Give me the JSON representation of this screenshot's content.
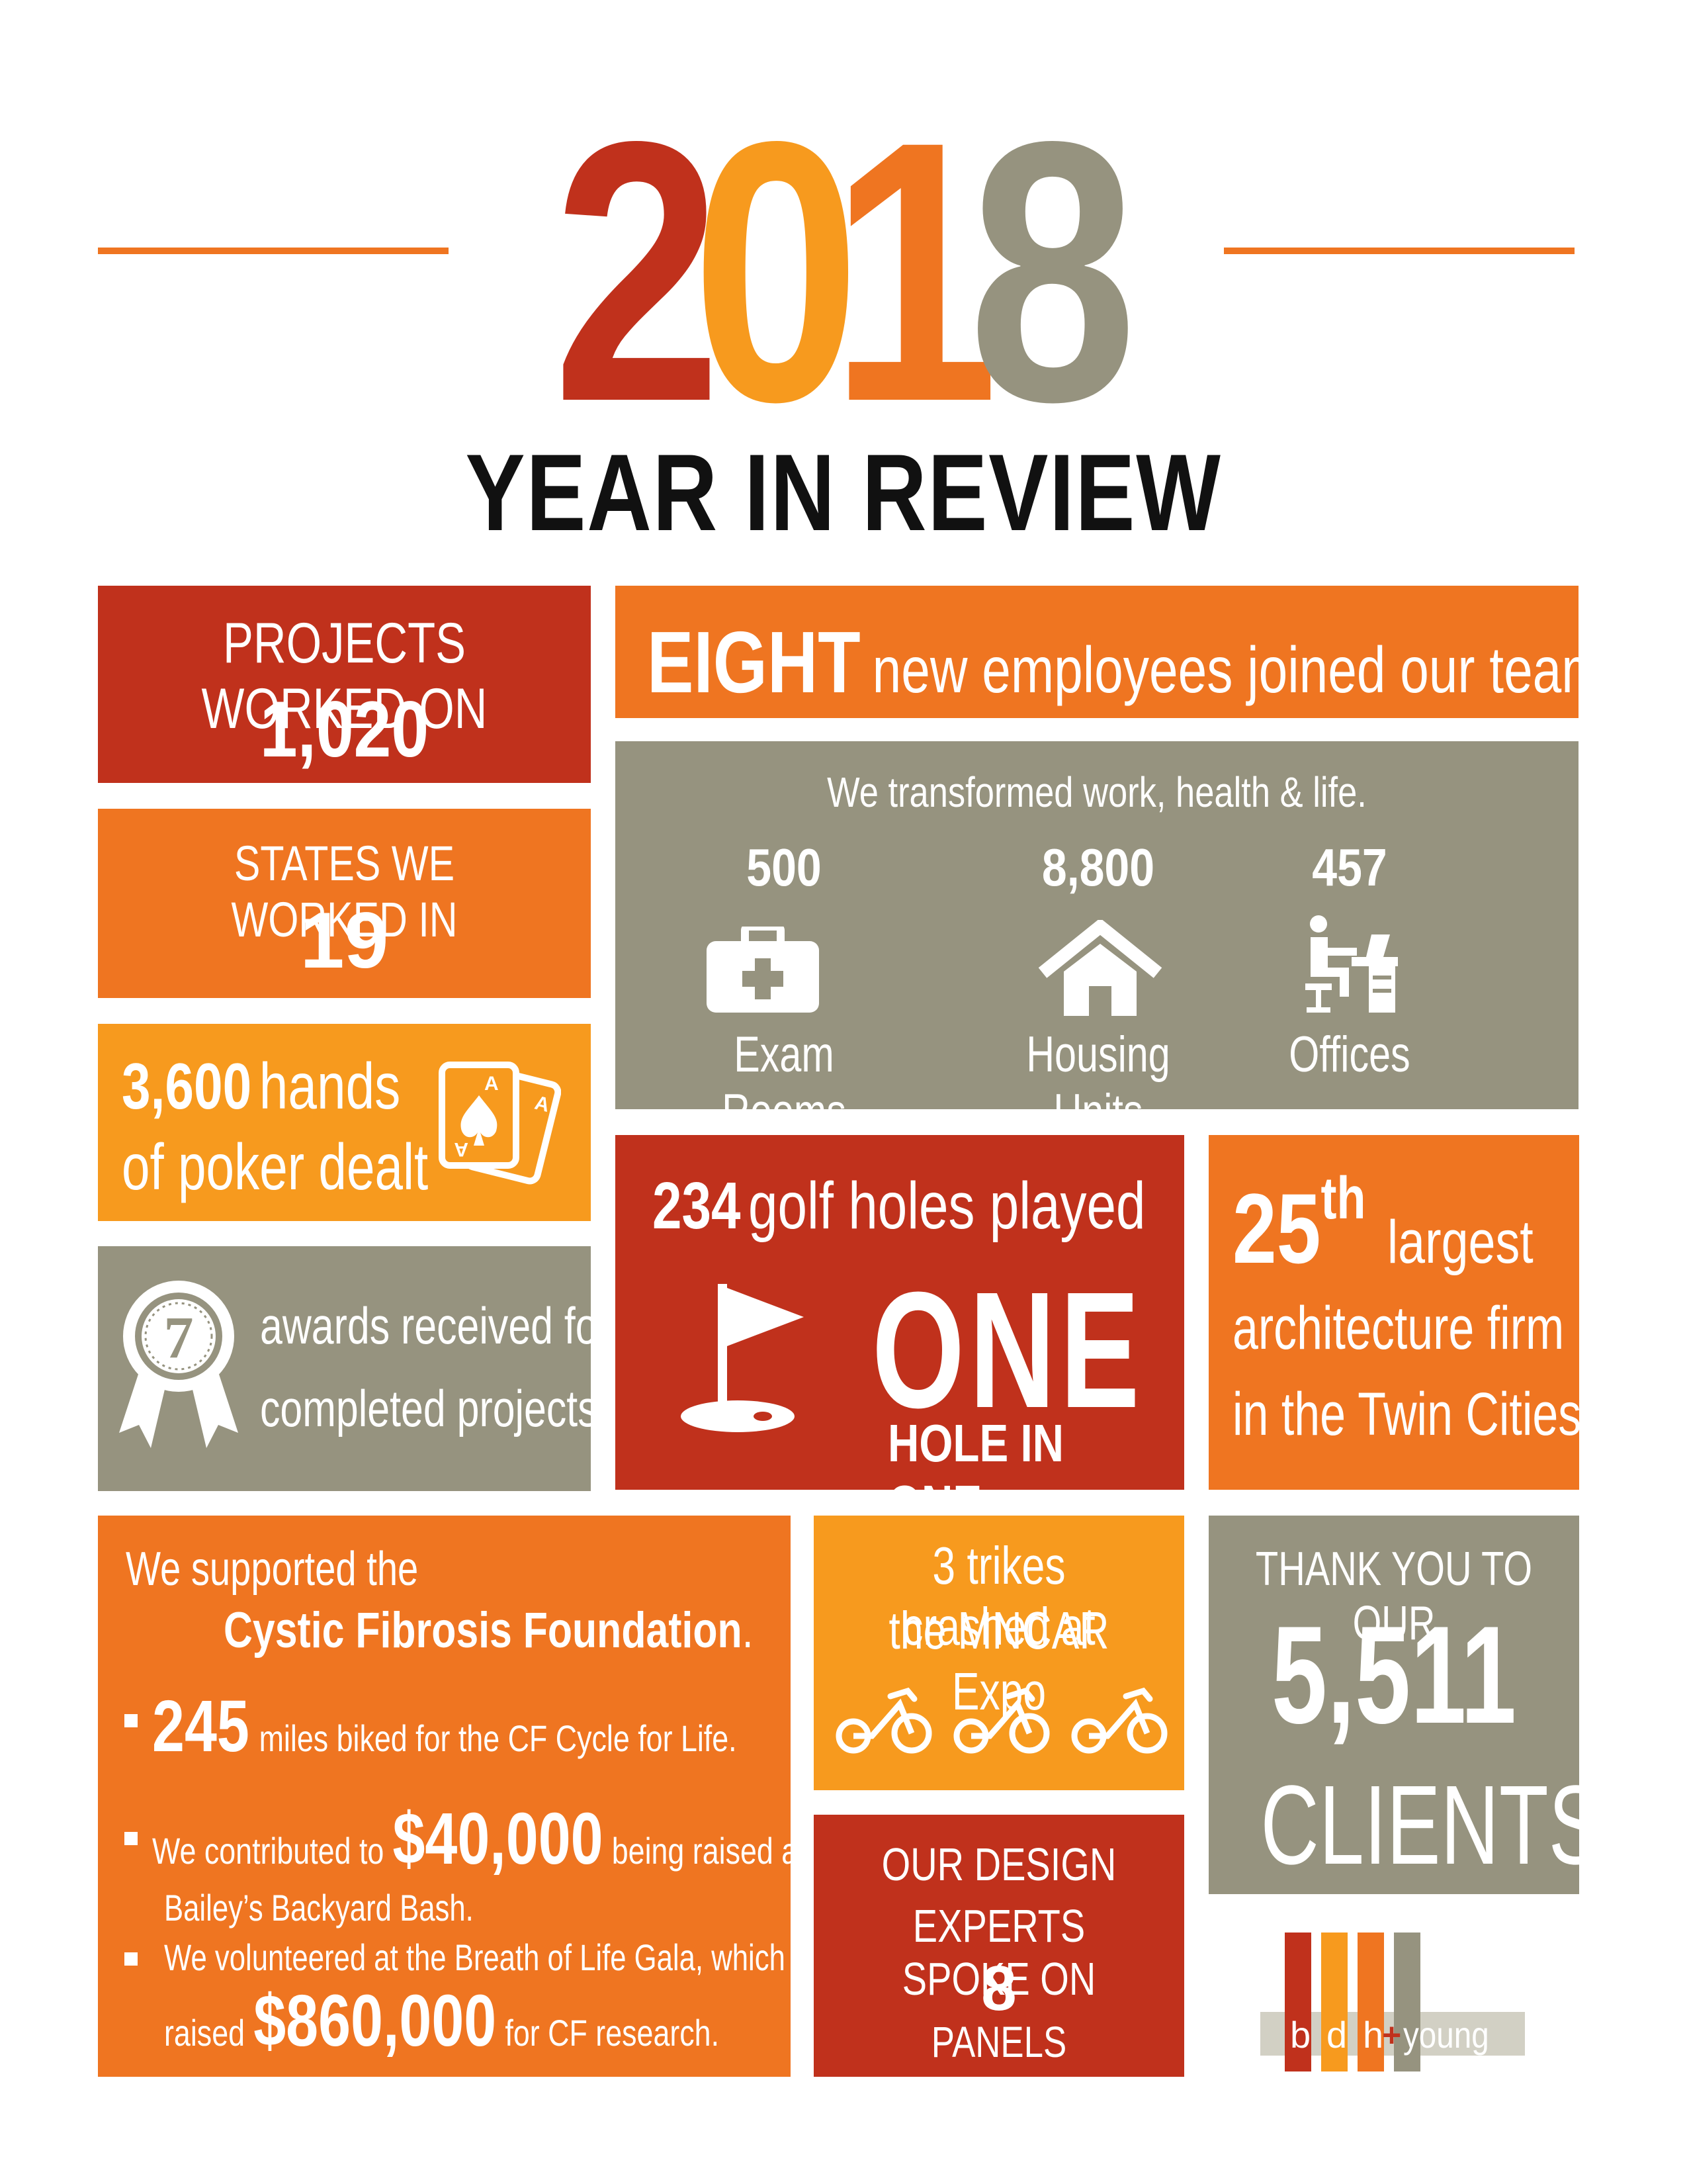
{
  "header": {
    "digits": [
      "2",
      "0",
      "1",
      "8"
    ],
    "digit_colors": [
      "#c0311c",
      "#f79a1e",
      "#ef7521",
      "#96937f"
    ],
    "subtitle": "YEAR IN REVIEW"
  },
  "colors": {
    "red": "#c0311c",
    "orange": "#ef7521",
    "yellow": "#f79a1e",
    "gray": "#96937f"
  },
  "projects": {
    "label": "PROJECTS WORKED ON",
    "value": "1,020"
  },
  "employees": {
    "count": "EIGHT",
    "text": "new employees joined our team"
  },
  "transform": {
    "heading": "We transformed work, health & life.",
    "items": [
      {
        "value": "500",
        "label": "Exam Rooms",
        "icon": "medical-kit-icon"
      },
      {
        "value": "8,800",
        "label": "Housing Units",
        "icon": "house-icon"
      },
      {
        "value": "457",
        "label": "Offices",
        "icon": "person-at-desk-icon"
      }
    ]
  },
  "states": {
    "label": "STATES WE WORKED IN",
    "value": "19"
  },
  "poker": {
    "value": "3,600",
    "text1": "hands",
    "text2": "of poker dealt",
    "icon": "playing-cards-icon"
  },
  "awards": {
    "value": "7",
    "text1": "awards received for",
    "text2": "completed projects",
    "icon": "award-ribbon-icon"
  },
  "golf": {
    "value": "234",
    "text": "golf holes played",
    "big": "ONE",
    "sub": "HOLE IN ONE",
    "icon": "golf-flag-icon"
  },
  "ranking": {
    "value": "25",
    "suffix": "th",
    "text1": "largest",
    "text2": "architecture firm",
    "text3": "in the Twin Cities"
  },
  "cf": {
    "intro": "We supported the",
    "org": "Cystic Fibrosis Foundation",
    "period": ".",
    "b1_value": "245",
    "b1_text": "miles biked for the CF Cycle for Life.",
    "b2_pre": "We contributed to",
    "b2_value": "$40,000",
    "b2_post": "being raised at",
    "b2_line2": "Bailey’s Backyard Bash.",
    "b3_line1": "We volunteered at the Breath of Life Gala, which",
    "b3_pre": "raised",
    "b3_value": "$860,000",
    "b3_post": "for CF research."
  },
  "trikes": {
    "line1": "3 trikes crashed at",
    "line2": "the MNCAR Expo",
    "icon": "tricycle-icon"
  },
  "panels": {
    "line1": "OUR DESIGN",
    "line2": "EXPERTS SPOKE ON",
    "value": "8",
    "line3": "PANELS"
  },
  "clients": {
    "line1": "THANK YOU TO OUR",
    "value": "5,511",
    "line2": "CLIENTS"
  },
  "logo": {
    "letters": [
      "b",
      "d",
      "h",
      "young"
    ],
    "plus": "+"
  }
}
